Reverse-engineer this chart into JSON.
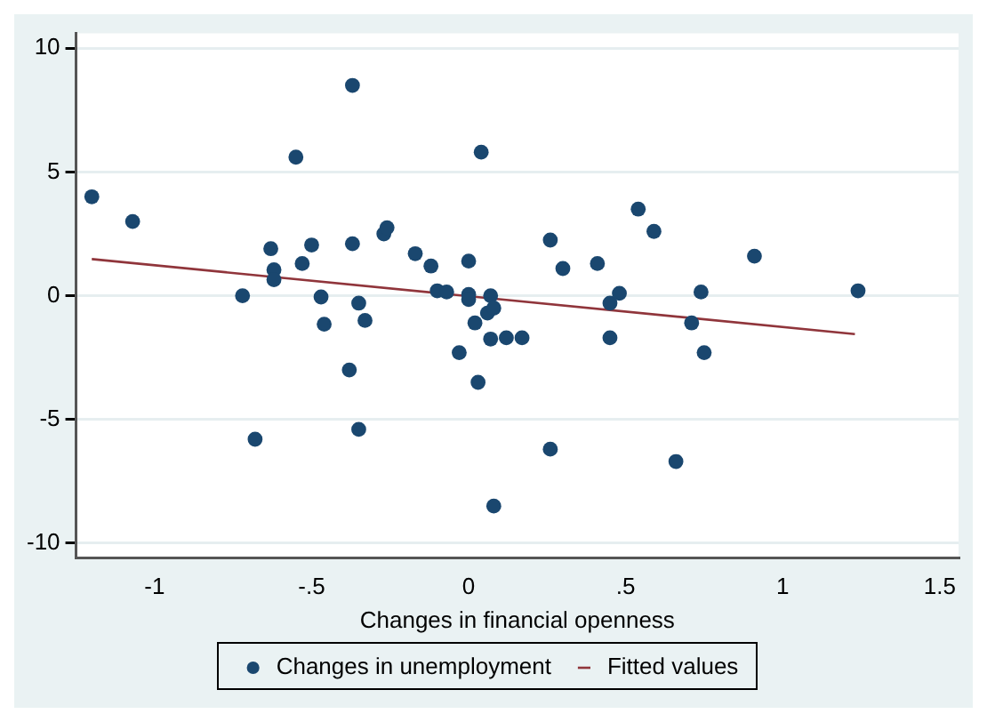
{
  "chart_data": {
    "type": "scatter",
    "xlabel": "Changes in financial openness",
    "xlim": [
      -1.25,
      1.56
    ],
    "xticks": [
      {
        "value": -1,
        "label": "-1"
      },
      {
        "value": -0.5,
        "label": "-.5"
      },
      0,
      {
        "value": 0.5,
        "label": ".5"
      },
      1,
      1.5
    ],
    "ylim": [
      -10.6,
      10.6
    ],
    "yticks": [
      -10,
      -5,
      0,
      5,
      10
    ],
    "grid": "y",
    "legend": "bottom",
    "series": [
      {
        "name": "Changes in unemployment",
        "color": "#1a476f",
        "marker": "circle",
        "x": [
          -1.2,
          -1.07,
          -0.72,
          -0.68,
          -0.63,
          -0.62,
          -0.62,
          -0.55,
          -0.53,
          -0.5,
          -0.47,
          -0.46,
          -0.37,
          -0.37,
          -0.35,
          -0.35,
          -0.33,
          -0.27,
          -0.26,
          -0.38,
          -0.17,
          -0.12,
          -0.1,
          -0.07,
          -0.03,
          0,
          0,
          0,
          0.02,
          0.03,
          0.04,
          0.06,
          0.07,
          0.07,
          0.08,
          0.08,
          0.12,
          0.17,
          0.26,
          0.26,
          0.3,
          0.41,
          0.45,
          0.45,
          0.48,
          0.54,
          0.59,
          0.66,
          0.71,
          0.74,
          0.75,
          0.91,
          1.24
        ],
        "values": [
          4.0,
          3.0,
          0,
          -5.8,
          1.9,
          1.05,
          0.65,
          5.6,
          1.3,
          2.05,
          -0.05,
          -1.15,
          2.1,
          8.5,
          -0.3,
          -5.4,
          -1.0,
          2.5,
          2.75,
          -3.0,
          1.7,
          1.2,
          0.2,
          0.15,
          -2.3,
          1.4,
          0.05,
          -0.15,
          -1.1,
          -3.5,
          5.8,
          -0.7,
          -1.75,
          0,
          -0.5,
          -8.5,
          -1.7,
          -1.7,
          -6.2,
          2.25,
          1.1,
          1.3,
          -0.3,
          -1.7,
          0.1,
          3.5,
          2.6,
          -6.7,
          -1.1,
          0.15,
          -2.3,
          1.6,
          0.2
        ]
      },
      {
        "name": "Fitted values",
        "type": "line",
        "color": "#90353b",
        "marker": "none",
        "line_style": "solid",
        "x": [
          -1.2,
          1.23
        ],
        "values": [
          1.48,
          -1.55
        ]
      }
    ]
  }
}
